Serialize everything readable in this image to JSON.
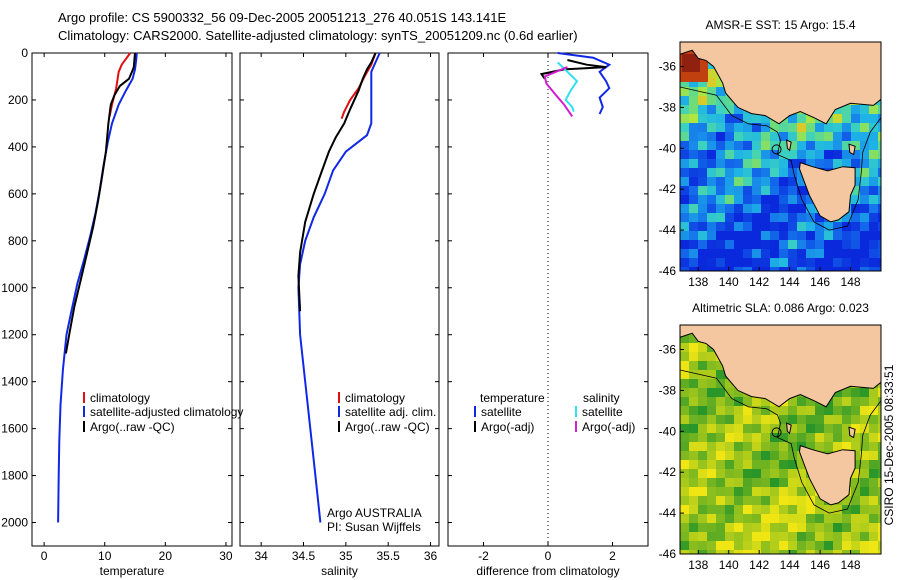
{
  "header": {
    "line1": "Argo profile: CS 5900332_56 09-Dec-2005 20051213_276 40.051S 143.141E",
    "line2": "Climatology: CARS2000. Satellite-adjusted climatology: synTS_20051209.nc (0.6d earlier)"
  },
  "colors": {
    "climatology": "#e01010",
    "satellite": "#1028e6",
    "argo": "#000000",
    "cyan": "#30e0f0",
    "magenta": "#d020d0",
    "land": "#f5c7a0",
    "sea_deep": "#0a32d8"
  },
  "credit": "Argo AUSTRALIA",
  "pi": "PI: Susan Wijffels",
  "timestamp": "CSIRO 15-Dec-2005 08:33:51",
  "chart_data": [
    {
      "id": "temperature",
      "type": "line",
      "xlabel": "temperature",
      "xticks": [
        0,
        10,
        20,
        30
      ],
      "xlim": [
        -2,
        31
      ],
      "ylim": [
        0,
        2100
      ],
      "yticks": [
        0,
        200,
        400,
        600,
        800,
        1000,
        1200,
        1400,
        1600,
        1800,
        2000
      ],
      "legend": [
        "climatology",
        "satellite-adjusted climatology",
        "Argo(..raw -QC)"
      ],
      "series": [
        {
          "name": "climatology",
          "color": "red",
          "x": [
            14.2,
            12.8,
            12.3,
            11.9,
            11.2,
            10.8
          ],
          "y": [
            0,
            50,
            80,
            150,
            220,
            270
          ]
        },
        {
          "name": "satellite-adjusted climatology",
          "color": "blue",
          "x": [
            15.3,
            15.2,
            15.0,
            14.6,
            13.5,
            12.3,
            11.2,
            10.5,
            9.8,
            9.2,
            8.5,
            7.6,
            6.6,
            5.5,
            4.5,
            3.7,
            3.1,
            2.7,
            2.5,
            2.4,
            2.3
          ],
          "y": [
            0,
            30,
            70,
            110,
            160,
            220,
            300,
            380,
            480,
            580,
            680,
            780,
            880,
            980,
            1100,
            1200,
            1350,
            1500,
            1650,
            1800,
            2000
          ]
        },
        {
          "name": "Argo(..raw -QC)",
          "color": "black",
          "x": [
            15.0,
            14.8,
            14.5,
            14.0,
            12.5,
            11.6,
            11.0,
            10.6,
            10.2,
            9.6,
            8.9,
            8.1,
            7.1,
            6.1,
            5.0,
            4.2,
            3.6
          ],
          "y": [
            0,
            60,
            80,
            110,
            140,
            180,
            220,
            300,
            420,
            520,
            630,
            740,
            850,
            960,
            1080,
            1190,
            1280
          ]
        }
      ]
    },
    {
      "id": "salinity",
      "type": "line",
      "xlabel": "salinity",
      "xticks": [
        34,
        34.5,
        35,
        35.5,
        36
      ],
      "xlim": [
        33.75,
        36.1
      ],
      "ylim": [
        0,
        2100
      ],
      "legend": [
        "climatology",
        "satellite adj. clim.",
        "Argo(..raw -QC)"
      ],
      "series": [
        {
          "name": "climatology",
          "color": "red",
          "x": [
            35.35,
            35.3,
            35.22,
            35.15,
            35.05,
            34.98,
            34.95
          ],
          "y": [
            0,
            50,
            100,
            150,
            200,
            250,
            280
          ]
        },
        {
          "name": "satellite adj. clim.",
          "color": "blue",
          "x": [
            35.4,
            35.35,
            35.3,
            35.3,
            35.3,
            35.25,
            35.0,
            34.85,
            34.75,
            34.62,
            34.52,
            34.46,
            34.44,
            34.46,
            34.52,
            34.58,
            34.64,
            34.7
          ],
          "y": [
            0,
            40,
            80,
            140,
            300,
            350,
            420,
            500,
            600,
            700,
            800,
            900,
            1000,
            1200,
            1400,
            1600,
            1800,
            2000
          ]
        },
        {
          "name": "Argo(..raw -QC)",
          "color": "black",
          "x": [
            35.35,
            35.3,
            35.25,
            35.2,
            35.15,
            35.05,
            34.98,
            34.88,
            34.8,
            34.72,
            34.62,
            34.52,
            34.46,
            34.44,
            34.46
          ],
          "y": [
            0,
            40,
            70,
            110,
            160,
            240,
            300,
            360,
            420,
            500,
            600,
            720,
            850,
            950,
            1100
          ]
        }
      ]
    },
    {
      "id": "difference",
      "type": "line",
      "xlabel": "difference from climatology",
      "xticks": [
        -2,
        0,
        2
      ],
      "xlim": [
        -3.1,
        3.1
      ],
      "ylim": [
        0,
        2100
      ],
      "legend_titles": [
        "temperature",
        "salinity"
      ],
      "legend": [
        "satellite",
        "Argo(-adj)",
        "satellite",
        "Argo(-adj)"
      ],
      "series": [
        {
          "name": "temperature satellite",
          "color": "blue",
          "x": [
            0.3,
            1.4,
            1.9,
            1.6,
            1.8,
            1.9,
            1.6,
            1.7,
            1.6
          ],
          "y": [
            0,
            20,
            50,
            80,
            120,
            150,
            190,
            230,
            260
          ]
        },
        {
          "name": "temperature Argo(-adj)",
          "color": "black",
          "x": [
            0.6,
            1.2,
            1.8,
            0.5,
            -0.2,
            -0.1
          ],
          "y": [
            30,
            50,
            60,
            70,
            90,
            110
          ]
        },
        {
          "name": "salinity satellite",
          "color": "cyan",
          "x": [
            0.3,
            0.6,
            0.9,
            0.7,
            0.55,
            0.75,
            0.8
          ],
          "y": [
            40,
            80,
            120,
            160,
            200,
            230,
            250
          ]
        },
        {
          "name": "salinity Argo(-adj)",
          "color": "magenta",
          "x": [
            0.6,
            -0.1,
            -0.05,
            0.25,
            0.5,
            0.75
          ],
          "y": [
            60,
            100,
            130,
            180,
            220,
            270
          ]
        }
      ]
    },
    {
      "id": "sst_map",
      "type": "heatmap",
      "title": "AMSR-E SST: 15 Argo: 15.4",
      "xticks": [
        138,
        140,
        142,
        144,
        146,
        148
      ],
      "xlim": [
        136.8,
        150
      ],
      "yticks": [
        -36,
        -38,
        -40,
        -42,
        -44,
        -46
      ],
      "ylim": [
        -46,
        -34.8
      ],
      "argo_position": [
        143.141,
        -40.051
      ]
    },
    {
      "id": "sla_map",
      "type": "heatmap",
      "title": "Altimetric SLA: 0.086 Argo: 0.023",
      "xticks": [
        138,
        140,
        142,
        144,
        146,
        148
      ],
      "xlim": [
        136.8,
        150
      ],
      "yticks": [
        -36,
        -38,
        -40,
        -42,
        -44,
        -46
      ],
      "ylim": [
        -46,
        -34.8
      ],
      "argo_position": [
        143.141,
        -40.051
      ]
    }
  ]
}
